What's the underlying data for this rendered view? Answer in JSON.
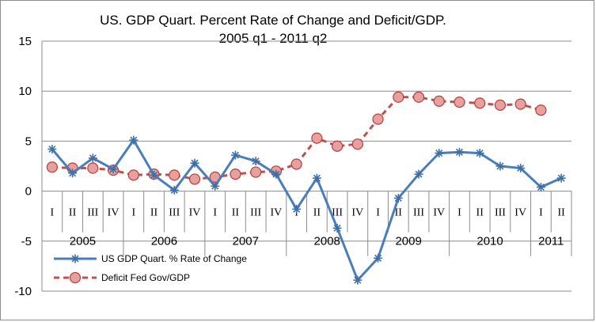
{
  "chart_data": {
    "type": "line",
    "title": "US. GDP Quart. Percent Rate of Change and Deficit/GDP.",
    "subtitle": "2005 q1 - 2011 q2",
    "ylim": [
      -10,
      15
    ],
    "yticks": [
      -10,
      -5,
      0,
      5,
      10,
      15
    ],
    "grid": "horizontal",
    "legend_position": "bottom-left",
    "categories": [
      "I",
      "II",
      "III",
      "IV",
      "I",
      "II",
      "III",
      "IV",
      "I",
      "II",
      "III",
      "IV",
      "I",
      "II",
      "III",
      "IV",
      "I",
      "II",
      "III",
      "IV",
      "I",
      "II",
      "III",
      "IV",
      "I",
      "II"
    ],
    "years": [
      "2005",
      "2006",
      "2007",
      "2008",
      "2009",
      "2010",
      "2011"
    ],
    "series": [
      {
        "name": "US GDP Quart. % Rate of Change",
        "color": "#4a7ebb",
        "marker": "asterisk",
        "values": [
          4.2,
          1.8,
          3.3,
          2.2,
          5.1,
          1.6,
          0.1,
          2.8,
          0.5,
          3.6,
          3.0,
          1.7,
          -1.8,
          1.3,
          -3.7,
          -8.9,
          -6.7,
          -0.7,
          1.7,
          3.8,
          3.9,
          3.8,
          2.5,
          2.3,
          0.4,
          1.3
        ]
      },
      {
        "name": "Deficit Fed Gov/GDP",
        "color": "#c0504d",
        "marker": "circle",
        "values": [
          2.4,
          2.3,
          2.3,
          2.1,
          1.6,
          1.7,
          1.6,
          1.2,
          1.4,
          1.7,
          1.9,
          2.0,
          2.7,
          5.3,
          4.5,
          4.7,
          7.2,
          9.4,
          9.4,
          9.0,
          8.9,
          8.8,
          8.6,
          8.7,
          8.1,
          null
        ]
      }
    ]
  }
}
